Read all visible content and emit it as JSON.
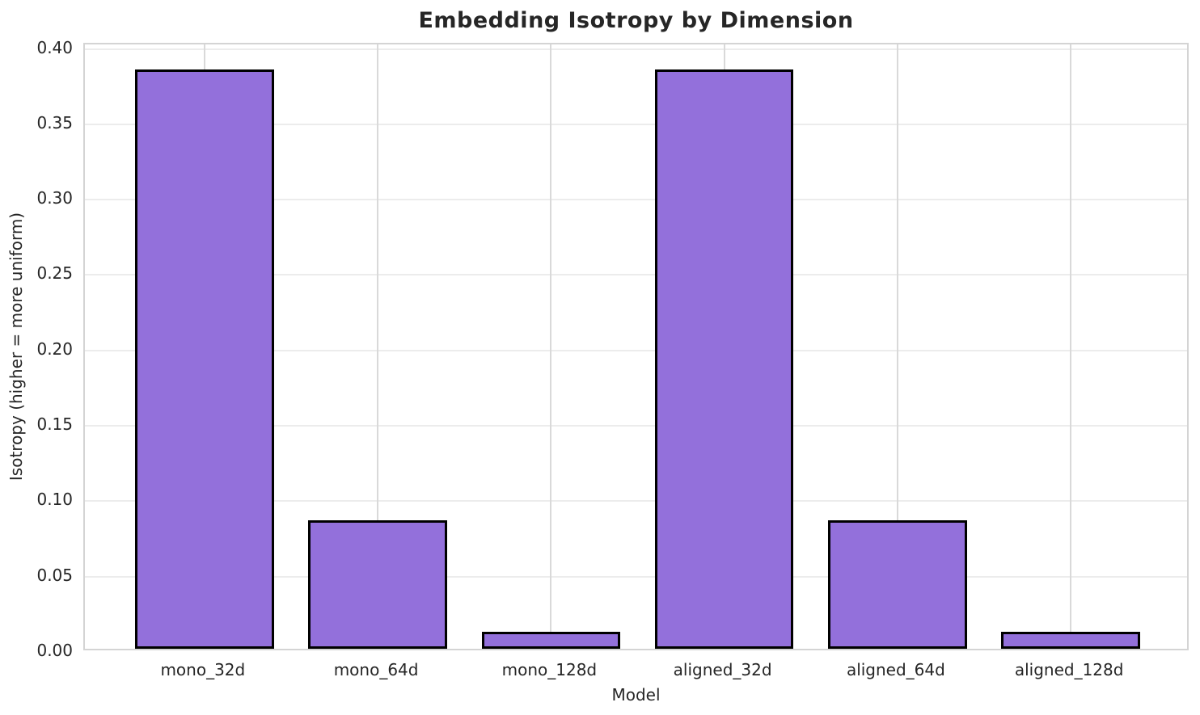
{
  "chart_data": {
    "type": "bar",
    "title": "Embedding Isotropy by Dimension",
    "xlabel": "Model",
    "ylabel": "Isotropy (higher = more uniform)",
    "categories": [
      "mono_32d",
      "mono_64d",
      "mono_128d",
      "aligned_32d",
      "aligned_64d",
      "aligned_128d"
    ],
    "values": [
      0.384,
      0.085,
      0.011,
      0.384,
      0.085,
      0.011
    ],
    "ylim": [
      0,
      0.403
    ],
    "yticks": [
      0.0,
      0.05,
      0.1,
      0.15,
      0.2,
      0.25,
      0.3,
      0.35,
      0.4
    ],
    "ytick_labels": [
      "0.00",
      "0.05",
      "0.10",
      "0.15",
      "0.20",
      "0.25",
      "0.30",
      "0.35",
      "0.40"
    ],
    "grid": "both",
    "legend": "none",
    "bar_color": "#9370DB",
    "bar_edge_color": "#000000",
    "h_grid_color": "#ececec",
    "v_grid_color": "#d9d9d9",
    "spine_color": "#d4d4d4",
    "text_color": "#262626"
  }
}
